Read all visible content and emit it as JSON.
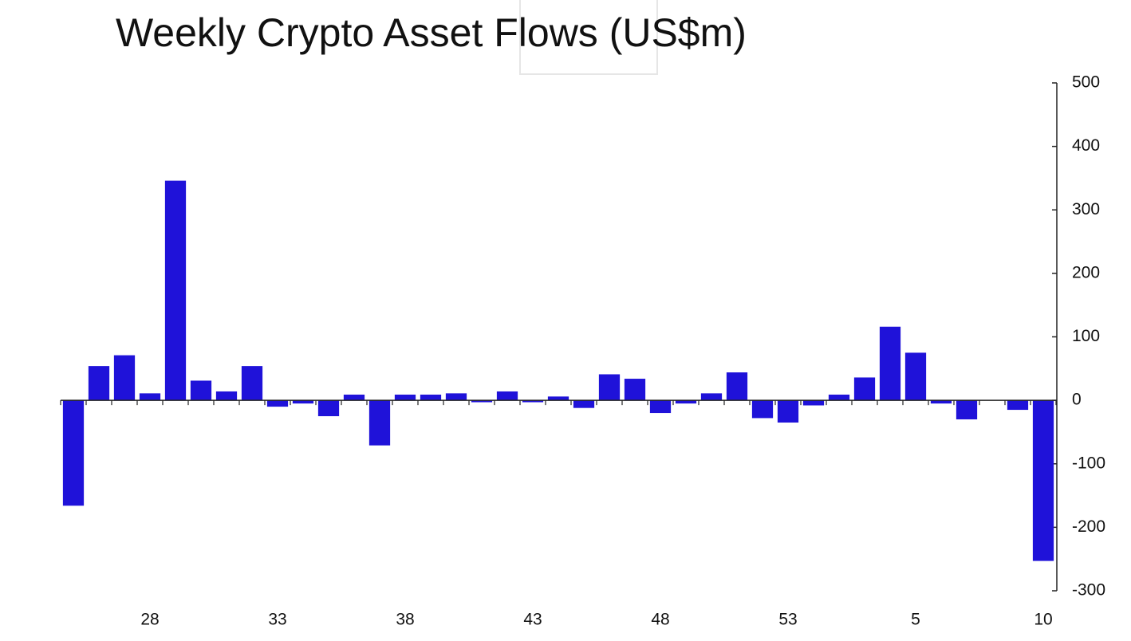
{
  "chart_data": {
    "type": "bar",
    "title": "Weekly Crypto Asset Flows (US$m)",
    "categories": [
      null,
      null,
      null,
      "28",
      null,
      null,
      null,
      null,
      "33",
      null,
      null,
      null,
      null,
      "38",
      null,
      null,
      null,
      null,
      "43",
      null,
      null,
      null,
      null,
      "48",
      null,
      null,
      null,
      null,
      "53",
      null,
      null,
      null,
      null,
      "5",
      null,
      null,
      null,
      null,
      "10"
    ],
    "values": [
      -166,
      54,
      71,
      11,
      346,
      31,
      14,
      54,
      -10,
      -5,
      -25,
      9,
      -71,
      9,
      9,
      11,
      -3,
      14,
      -3,
      6,
      -12,
      41,
      34,
      -20,
      -5,
      11,
      44,
      -28,
      -35,
      -8,
      9,
      36,
      116,
      75,
      -5,
      -30,
      0,
      -15,
      -253
    ],
    "color": "#1f12d9",
    "ylim": [
      -300,
      500
    ],
    "yticks": [
      -300,
      -200,
      -100,
      0,
      100,
      200,
      300,
      400,
      500
    ],
    "grid": false
  }
}
